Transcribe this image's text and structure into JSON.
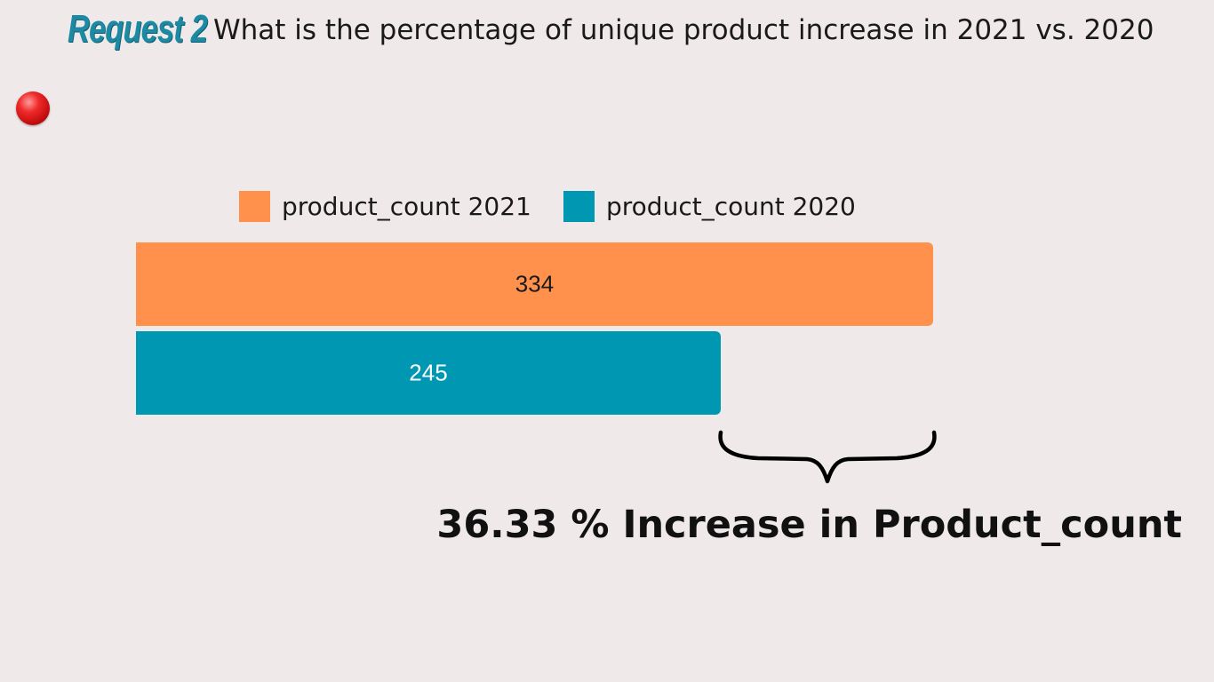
{
  "header": {
    "request_label": "Request 2",
    "question": "What is the percentage of unique product increase in 2021 vs. 2020"
  },
  "chart_data": {
    "type": "bar",
    "orientation": "horizontal",
    "title": "",
    "xlabel": "",
    "ylabel": "",
    "xlim": [
      0,
      334
    ],
    "grid": false,
    "legend_position": "top",
    "series": [
      {
        "name": "product_count 2021",
        "value": 334,
        "label": "334",
        "color": "#ff914d",
        "label_color": "#1a1a1a"
      },
      {
        "name": "product_count 2020",
        "value": 245,
        "label": "245",
        "color": "#0097b2",
        "label_color": "#ffffff"
      }
    ],
    "annotation": "36.33 % Increase in Product_count"
  }
}
